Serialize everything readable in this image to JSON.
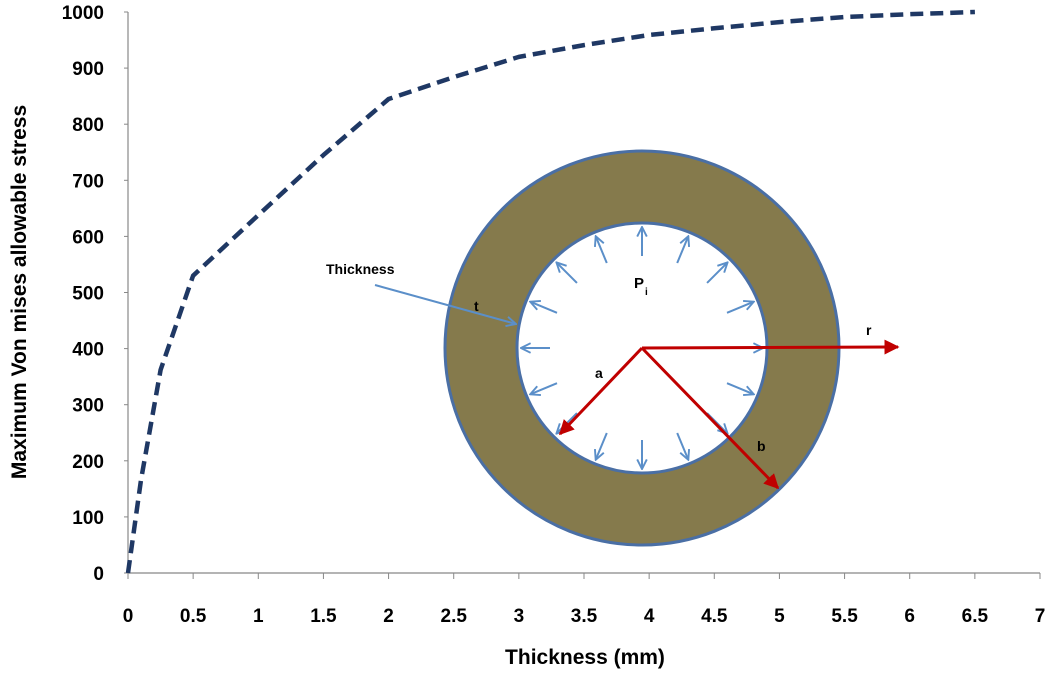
{
  "chart_data": {
    "type": "line",
    "x_label": "Thickness (mm)",
    "y_label": "Maximum Von mises allowable stress",
    "x": [
      0,
      0.1,
      0.25,
      0.5,
      1,
      1.5,
      2,
      2.5,
      3,
      3.5,
      4,
      4.5,
      5,
      5.5,
      6,
      6.5
    ],
    "values": [
      0,
      166,
      362,
      530,
      638,
      745,
      845,
      884,
      920,
      941,
      959,
      971,
      982,
      991,
      996,
      1000
    ],
    "color": "#1f3864",
    "dashed": true,
    "xlim": [
      0,
      7
    ],
    "xticks": [
      0,
      0.5,
      1,
      1.5,
      2,
      2.5,
      3,
      3.5,
      4,
      4.5,
      5,
      5.5,
      6,
      6.5,
      7
    ],
    "ylim": [
      0,
      1000
    ],
    "yticks": [
      0,
      100,
      200,
      300,
      400,
      500,
      600,
      700,
      800,
      900,
      1000
    ],
    "grid": false,
    "inset_labels": {
      "thickness": "Thickness",
      "t": "t",
      "pressure": "P",
      "pressure_sub": "i",
      "a": "a",
      "b": "b",
      "r": "r"
    }
  }
}
